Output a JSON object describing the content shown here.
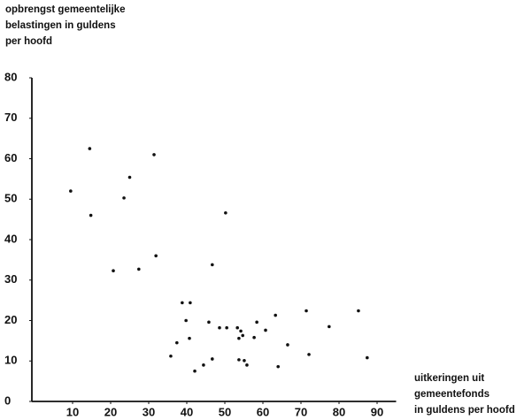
{
  "chart_data": {
    "type": "scatter",
    "ylabel": [
      "opbrengst gemeentelijke",
      "belastingen in guldens",
      "per hoofd"
    ],
    "xlabel": [
      "uitkeringen uit",
      "gemeentefonds",
      "in guldens per hoofd"
    ],
    "x": [
      9.5,
      14.5,
      14.8,
      23.5,
      25,
      31.4,
      20.7,
      27.4,
      31.9,
      46.7,
      50.2,
      38.8,
      40.9,
      39.8,
      45.8,
      37.4,
      40.7,
      35.8,
      48.6,
      50.5,
      53.3,
      54.2,
      54.7,
      53.7,
      57.7,
      58.4,
      60.7,
      63.3,
      66.5,
      71.4,
      77.4,
      85.1,
      72.1,
      46.7,
      53.7,
      55.1,
      55.8,
      44.4,
      42.1,
      64,
      87.4
    ],
    "values": [
      52,
      62.5,
      46,
      50.3,
      55.4,
      61,
      32.3,
      32.7,
      36,
      33.8,
      46.6,
      24.4,
      24.4,
      20,
      19.6,
      14.5,
      15.6,
      11.2,
      18.2,
      18.2,
      18.2,
      17.4,
      16.3,
      15.6,
      15.8,
      19.6,
      17.6,
      21.3,
      14,
      22.4,
      18.5,
      22.4,
      11.6,
      10.5,
      10.3,
      10.1,
      9,
      9,
      7.5,
      8.6,
      10.8
    ],
    "color": "#111111",
    "xlim": [
      0,
      95
    ],
    "xticks": [
      10,
      20,
      30,
      40,
      50,
      60,
      70,
      80,
      90
    ],
    "ylim": [
      0,
      80
    ],
    "yticks": [
      0,
      10,
      20,
      30,
      40,
      50,
      60,
      70,
      80
    ]
  }
}
